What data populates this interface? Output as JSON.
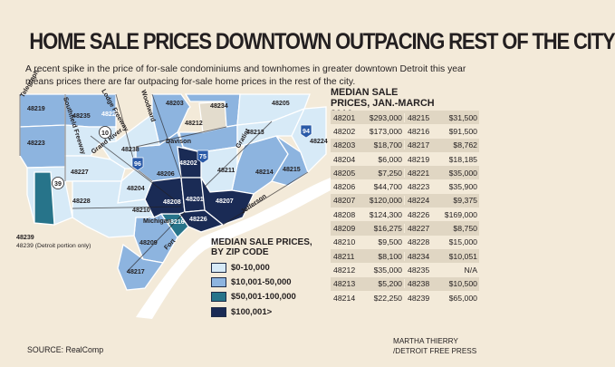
{
  "headline": "HOME SALE PRICES DOWNTOWN OUTPACING REST OF THE CITY",
  "dek": "A recent spike in the price of for-sale condominiums and townhomes in greater downtown Detroit this year means prices there are far outpacing for-sale home prices in the rest of the city.",
  "colors": {
    "background": "#f3ead9",
    "tier_1": "#d7eaf7",
    "tier_2": "#8db4df",
    "tier_3": "#27748a",
    "tier_4": "#1a2b55",
    "outside_city": "#e3dccd",
    "water": "#ffffff"
  },
  "map": {
    "zip_labels": [
      "48219",
      "48221",
      "48203",
      "48234",
      "48205",
      "48235",
      "48212",
      "48213",
      "48223",
      "48238",
      "48202",
      "48211",
      "48224",
      "48227",
      "48206",
      "48214",
      "48215",
      "48228",
      "48204",
      "48239",
      "48208",
      "48201",
      "48207",
      "48210",
      "48216",
      "48226",
      "48209",
      "48217"
    ],
    "road_labels": [
      "Telegraph",
      "Lodge Freeway",
      "Woodward",
      "Southfield Freeway",
      "Grand River",
      "Davison",
      "Gratiot",
      "Jefferson",
      "Michigan",
      "Fort"
    ],
    "highway_shields": [
      "10",
      "39",
      "75",
      "94",
      "96"
    ],
    "note": "48239 (Detroit portion only)"
  },
  "legend": {
    "title": "MEDIAN SALE PRICES, BY ZIP CODE",
    "items": [
      {
        "label": "$0-10,000",
        "color": "#d7eaf7"
      },
      {
        "label": "$10,001-50,000",
        "color": "#8db4df"
      },
      {
        "label": "$50,001-100,000",
        "color": "#27748a"
      },
      {
        "label": "$100,001>",
        "color": "#1a2b55"
      }
    ]
  },
  "table": {
    "title": "MEDIAN SALE PRICES, JAN.-MARCH 2016",
    "left": [
      {
        "zip": "48201",
        "value": "$293,000"
      },
      {
        "zip": "48202",
        "value": "$173,000"
      },
      {
        "zip": "48203",
        "value": "$18,700"
      },
      {
        "zip": "48204",
        "value": "$6,000"
      },
      {
        "zip": "48205",
        "value": "$7,250"
      },
      {
        "zip": "48206",
        "value": "$44,700"
      },
      {
        "zip": "48207",
        "value": "$120,000"
      },
      {
        "zip": "48208",
        "value": "$124,300"
      },
      {
        "zip": "48209",
        "value": "$16,275"
      },
      {
        "zip": "48210",
        "value": "$9,500"
      },
      {
        "zip": "48211",
        "value": "$8,100"
      },
      {
        "zip": "48212",
        "value": "$35,000"
      },
      {
        "zip": "48213",
        "value": "$5,200"
      },
      {
        "zip": "48214",
        "value": "$22,250"
      }
    ],
    "right": [
      {
        "zip": "48215",
        "value": "$31,500"
      },
      {
        "zip": "48216",
        "value": "$91,500"
      },
      {
        "zip": "48217",
        "value": "$8,762"
      },
      {
        "zip": "48219",
        "value": "$18,185"
      },
      {
        "zip": "48221",
        "value": "$35,000"
      },
      {
        "zip": "48223",
        "value": "$35,900"
      },
      {
        "zip": "48224",
        "value": "$9,375"
      },
      {
        "zip": "48226",
        "value": "$169,000"
      },
      {
        "zip": "48227",
        "value": "$8,750"
      },
      {
        "zip": "48228",
        "value": "$15,000"
      },
      {
        "zip": "48234",
        "value": "$10,051"
      },
      {
        "zip": "48235",
        "value": "N/A"
      },
      {
        "zip": "48238",
        "value": "$10,500"
      },
      {
        "zip": "48239",
        "value": "$65,000"
      }
    ]
  },
  "source": "SOURCE: RealComp",
  "credit": [
    "MARTHA THIERRY",
    "/DETROIT FREE PRESS"
  ]
}
